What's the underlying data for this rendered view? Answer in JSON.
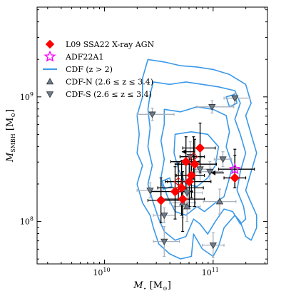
{
  "chart_data": {
    "type": "scatter",
    "xlabel_main": "M",
    "xlabel_sub": "⋆",
    "xlabel_unit": " [M",
    "xlabel_unit_sub": "⊙",
    "xlabel_close": "]",
    "ylabel_main": "M",
    "ylabel_sub": "SMBH",
    "ylabel_unit": " [M",
    "ylabel_unit_sub": "⊙",
    "ylabel_close": "]",
    "x_log_range": [
      9.38,
      11.5
    ],
    "y_log_range": [
      7.66,
      9.72
    ],
    "x_ticks": [
      {
        "logv": 10,
        "base": "10",
        "exp": "10"
      },
      {
        "logv": 11,
        "base": "10",
        "exp": "11"
      }
    ],
    "y_ticks": [
      {
        "logv": 8,
        "base": "10",
        "exp": "8"
      },
      {
        "logv": 9,
        "base": "10",
        "exp": "9"
      }
    ],
    "legend": [
      {
        "label": "L09 SSA22 X-ray AGN",
        "marker": "diamond",
        "color": "#ff0000"
      },
      {
        "label": "ADF22A1",
        "marker": "star",
        "color": "#ff00ff"
      },
      {
        "label": "CDF (z > 2)",
        "marker": "line",
        "color": "#3b99e8"
      },
      {
        "label": "CDF-N (2.6 ≤ z ≤ 3.4)",
        "marker": "triangle-up",
        "color": "#6d7b8d"
      },
      {
        "label": "CDF-S (2.6 ≤ z ≤ 3.4)",
        "marker": "triangle-down",
        "color": "#6d7b8d"
      }
    ],
    "series": [
      {
        "name": "L09 SSA22 X-ray AGN",
        "points": [
          {
            "x": 10.65,
            "y": 8.24,
            "xerr": [
              0.22,
              0.16
            ],
            "yerr": [
              0.22,
              0.2
            ]
          },
          {
            "x": 10.78,
            "y": 8.32,
            "xerr": [
              0.2,
              0.2
            ],
            "yerr": [
              0.2,
              0.2
            ]
          },
          {
            "x": 10.83,
            "y": 8.46,
            "xerr": [
              0.18,
              0.2
            ],
            "yerr": [
              0.34,
              0.2
            ]
          },
          {
            "x": 10.88,
            "y": 8.59,
            "xerr": [
              0.16,
              0.14
            ],
            "yerr": [
              0.2,
              0.2
            ]
          },
          {
            "x": 10.8,
            "y": 8.37,
            "xerr": [
              0.14,
              0.12
            ],
            "yerr": [
              0.18,
              0.16
            ]
          },
          {
            "x": 10.75,
            "y": 8.48,
            "xerr": [
              0.14,
              0.12
            ],
            "yerr": [
              0.22,
              0.2
            ]
          },
          {
            "x": 11.2,
            "y": 8.35,
            "xerr": [
              0.1,
              0.1
            ],
            "yerr": [
              0.08,
              0.18
            ]
          },
          {
            "x": 10.71,
            "y": 8.27,
            "xerr": [
              0.22,
              0.2
            ],
            "yerr": [
              0.22,
              0.22
            ]
          },
          {
            "x": 10.72,
            "y": 8.18,
            "xerr": [
              0.2,
              0.2
            ],
            "yerr": [
              0.26,
              0.22
            ]
          },
          {
            "x": 10.52,
            "y": 8.17,
            "xerr": [
              0.12,
              0.2
            ],
            "yerr": [
              0.18,
              0.18
            ]
          }
        ]
      },
      {
        "name": "L09 SSA22 X-ray AGN (upper limits)",
        "points": [
          {
            "x": 10.82,
            "y": 8.52,
            "xerr": [
              0.12,
              0.1
            ],
            "yerr": [
              0.18,
              0.16
            ],
            "open": true
          },
          {
            "x": 10.68,
            "y": 8.32,
            "xerr": [
              0.12,
              0.1
            ],
            "yerr": [
              0.15,
              0.15
            ],
            "open": true
          },
          {
            "x": 10.83,
            "y": 8.56,
            "left_arrow": true
          },
          {
            "x": 11.1,
            "y": 8.39,
            "left_arrow": true
          }
        ]
      },
      {
        "name": "ADF22A1",
        "points": [
          {
            "x": 11.2,
            "y": 8.42,
            "xerr": [
              0.15,
              0.18
            ],
            "yerr": [
              0.15,
              0.16
            ]
          }
        ]
      },
      {
        "name": "CDF-N (2.6 ≤ z ≤ 3.4)",
        "points": [
          {
            "x": 10.76,
            "y": 8.12,
            "xerr": [
              0.12,
              0.12
            ],
            "yerr": [
              0.12,
              0.12
            ]
          },
          {
            "x": 10.72,
            "y": 8.15,
            "xerr": [
              0.12,
              0.12
            ],
            "yerr": [
              0.12,
              0.12
            ]
          },
          {
            "x": 11.06,
            "y": 8.16,
            "xerr": [
              0.15,
              0.15
            ],
            "yerr": [
              0.1,
              0.1
            ]
          }
        ]
      },
      {
        "name": "CDF-S (2.6 ≤ z ≤ 3.4)",
        "points": [
          {
            "x": 10.44,
            "y": 8.86,
            "xerr": [
              0.14,
              0.2
            ],
            "yerr": [
              0.05,
              0.05
            ]
          },
          {
            "x": 10.99,
            "y": 8.92,
            "xerr": [
              0.14,
              0.2
            ],
            "yerr": [
              0.05,
              0.05
            ]
          },
          {
            "x": 11.2,
            "y": 8.99,
            "xerr": [
              0.1,
              0.14
            ],
            "yerr": [
              0.04,
              0.04
            ]
          },
          {
            "x": 10.79,
            "y": 8.52,
            "xerr": [
              0.1,
              0.1
            ],
            "yerr": [
              0.12,
              0.12
            ]
          },
          {
            "x": 11.09,
            "y": 8.5,
            "xerr": [
              0.08,
              0.08
            ],
            "yerr": [
              0.06,
              0.06
            ]
          },
          {
            "x": 10.88,
            "y": 8.42,
            "xerr": [
              0.1,
              0.1
            ],
            "yerr": [
              0.1,
              0.1
            ]
          },
          {
            "x": 10.97,
            "y": 8.4,
            "xerr": [
              0.12,
              0.12
            ],
            "yerr": [
              0.08,
              0.08
            ]
          },
          {
            "x": 10.42,
            "y": 8.25,
            "xerr": [
              0.12,
              0.12
            ],
            "yerr": [
              0.06,
              0.06
            ]
          },
          {
            "x": 10.55,
            "y": 8.05,
            "xerr": [
              0.1,
              0.1
            ],
            "yerr": [
              0.06,
              0.06
            ]
          },
          {
            "x": 10.76,
            "y": 8.23,
            "xerr": [
              0.12,
              0.14
            ],
            "yerr": [
              0.08,
              0.08
            ]
          },
          {
            "x": 10.55,
            "y": 7.84,
            "xerr": [
              0.1,
              0.14
            ],
            "yerr": [
              0.12,
              0.12
            ]
          },
          {
            "x": 11.0,
            "y": 7.81,
            "xerr": [
              0.1,
              0.1
            ],
            "yerr": [
              0.1,
              0.1
            ]
          }
        ]
      },
      {
        "name": "CDF (z > 2)",
        "contours": [
          [
            [
              10.4,
              9.3
            ],
            [
              10.55,
              9.28
            ],
            [
              10.7,
              9.25
            ],
            [
              10.85,
              9.24
            ],
            [
              11.0,
              9.22
            ],
            [
              11.15,
              9.18
            ],
            [
              11.3,
              9.1
            ],
            [
              11.35,
              8.95
            ],
            [
              11.3,
              8.85
            ],
            [
              11.35,
              8.7
            ],
            [
              11.4,
              8.55
            ],
            [
              11.35,
              8.4
            ],
            [
              11.3,
              8.25
            ],
            [
              11.35,
              8.15
            ],
            [
              11.4,
              8.05
            ],
            [
              11.4,
              7.95
            ],
            [
              11.35,
              7.85
            ],
            [
              11.3,
              7.88
            ],
            [
              11.25,
              8.0
            ],
            [
              11.2,
              8.05
            ],
            [
              11.1,
              7.95
            ],
            [
              11.05,
              7.8
            ],
            [
              11.0,
              7.72
            ],
            [
              10.9,
              7.78
            ],
            [
              10.82,
              7.9
            ],
            [
              10.8,
              7.72
            ],
            [
              10.7,
              7.7
            ],
            [
              10.6,
              7.74
            ],
            [
              10.5,
              7.82
            ],
            [
              10.45,
              7.95
            ],
            [
              10.42,
              8.05
            ],
            [
              10.35,
              8.15
            ],
            [
              10.3,
              8.3
            ],
            [
              10.35,
              8.45
            ],
            [
              10.3,
              8.55
            ],
            [
              10.32,
              8.7
            ],
            [
              10.3,
              8.85
            ],
            [
              10.35,
              9.0
            ],
            [
              10.35,
              9.15
            ],
            [
              10.4,
              9.3
            ]
          ],
          [
            [
              10.45,
              9.12
            ],
            [
              10.6,
              9.1
            ],
            [
              10.75,
              9.12
            ],
            [
              10.9,
              9.1
            ],
            [
              11.05,
              9.08
            ],
            [
              11.2,
              9.05
            ],
            [
              11.25,
              8.95
            ],
            [
              11.2,
              8.82
            ],
            [
              11.25,
              8.7
            ],
            [
              11.3,
              8.55
            ],
            [
              11.25,
              8.4
            ],
            [
              11.22,
              8.25
            ],
            [
              11.28,
              8.12
            ],
            [
              11.3,
              8.02
            ],
            [
              11.25,
              7.98
            ],
            [
              11.18,
              8.08
            ],
            [
              11.1,
              8.1
            ],
            [
              11.02,
              8.0
            ],
            [
              10.95,
              7.9
            ],
            [
              10.88,
              7.98
            ],
            [
              10.82,
              8.02
            ],
            [
              10.75,
              7.88
            ],
            [
              10.65,
              7.85
            ],
            [
              10.55,
              7.92
            ],
            [
              10.5,
              8.02
            ],
            [
              10.45,
              8.15
            ],
            [
              10.4,
              8.3
            ],
            [
              10.44,
              8.45
            ],
            [
              10.4,
              8.6
            ],
            [
              10.42,
              8.75
            ],
            [
              10.4,
              8.9
            ],
            [
              10.42,
              9.02
            ],
            [
              10.45,
              9.12
            ]
          ],
          [
            [
              10.55,
              8.9
            ],
            [
              10.7,
              8.88
            ],
            [
              10.85,
              8.92
            ],
            [
              11.0,
              8.9
            ],
            [
              11.12,
              8.85
            ],
            [
              11.15,
              8.72
            ],
            [
              11.12,
              8.6
            ],
            [
              11.18,
              8.45
            ],
            [
              11.14,
              8.32
            ],
            [
              11.1,
              8.2
            ],
            [
              11.02,
              8.15
            ],
            [
              10.92,
              8.08
            ],
            [
              10.85,
              8.12
            ],
            [
              10.75,
              8.05
            ],
            [
              10.65,
              8.08
            ],
            [
              10.58,
              8.2
            ],
            [
              10.52,
              8.35
            ],
            [
              10.55,
              8.5
            ],
            [
              10.52,
              8.65
            ],
            [
              10.55,
              8.78
            ],
            [
              10.55,
              8.9
            ]
          ],
          [
            [
              10.65,
              8.7
            ],
            [
              10.8,
              8.72
            ],
            [
              10.95,
              8.7
            ],
            [
              11.05,
              8.6
            ],
            [
              11.02,
              8.45
            ],
            [
              10.95,
              8.35
            ],
            [
              10.85,
              8.28
            ],
            [
              10.75,
              8.3
            ],
            [
              10.68,
              8.42
            ],
            [
              10.64,
              8.55
            ],
            [
              10.65,
              8.7
            ]
          ],
          [
            [
              11.12,
              9.0
            ],
            [
              11.2,
              9.02
            ],
            [
              11.22,
              8.95
            ],
            [
              11.15,
              8.92
            ],
            [
              11.12,
              9.0
            ]
          ],
          [
            [
              10.52,
              8.32
            ],
            [
              10.6,
              8.35
            ],
            [
              10.62,
              8.28
            ],
            [
              10.54,
              8.26
            ],
            [
              10.52,
              8.32
            ]
          ]
        ]
      }
    ]
  }
}
